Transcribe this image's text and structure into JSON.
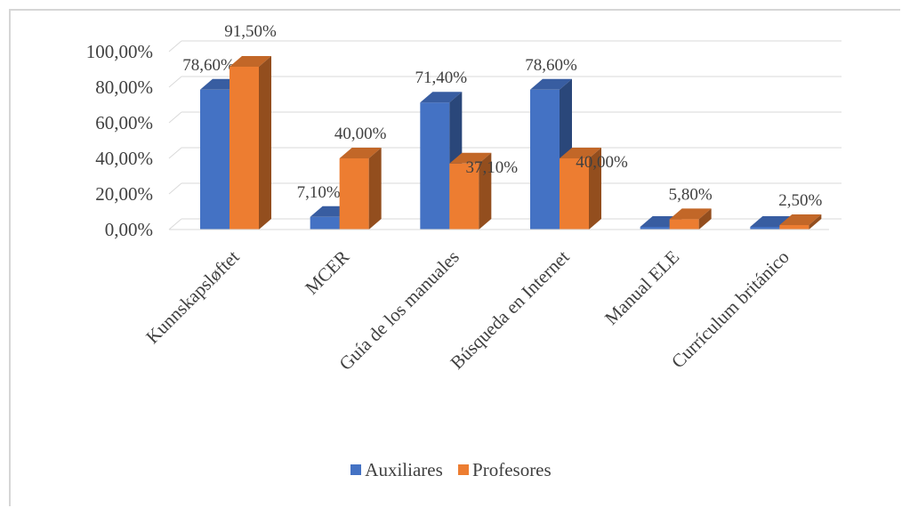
{
  "chart_data": {
    "type": "bar",
    "style": "3d-clustered",
    "categories": [
      "Kunnskapsløftet",
      "MCER",
      "Guía de los manuales",
      "Búsqueda en Internet",
      "Manual ELE",
      "Currículum británico"
    ],
    "series": [
      {
        "name": "Auxiliares",
        "color": "#4472C4",
        "values": [
          78.6,
          7.1,
          71.4,
          78.6,
          0,
          0
        ],
        "labels": [
          "78,60%",
          "7,10%",
          "71,40%",
          "78,60%",
          "",
          ""
        ]
      },
      {
        "name": "Profesores",
        "color": "#ED7D31",
        "values": [
          91.5,
          40.0,
          37.1,
          40.0,
          5.8,
          2.5
        ],
        "labels": [
          "91,50%",
          "40,00%",
          "37,10%",
          "40,00%",
          "5,80%",
          "2,50%"
        ]
      }
    ],
    "yticks": [
      "0,00%",
      "20,00%",
      "40,00%",
      "60,00%",
      "80,00%",
      "100,00%"
    ],
    "ylim": [
      0,
      100
    ],
    "grid": true,
    "legend_position": "bottom"
  }
}
